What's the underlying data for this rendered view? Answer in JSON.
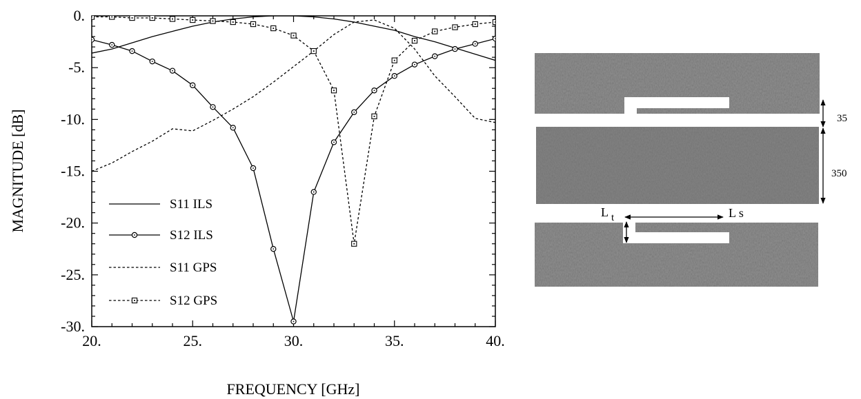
{
  "chart_data": {
    "type": "line",
    "xlabel": "FREQUENCY [GHz]",
    "ylabel": "MAGNITUDE [dB]",
    "xlim": [
      20,
      40
    ],
    "ylim": [
      -30,
      0
    ],
    "x_ticks": [
      20,
      25,
      30,
      35,
      40
    ],
    "x_tick_labels": [
      "20.",
      "25.",
      "30.",
      "35.",
      "40."
    ],
    "y_ticks": [
      0,
      -5,
      -10,
      -15,
      -20,
      -25,
      -30
    ],
    "y_tick_labels": [
      "0.",
      "-5.",
      "-10.",
      "-15.",
      "-20.",
      "-25.",
      "-30."
    ],
    "grid": false,
    "legend_position": "bottom-left",
    "series": [
      {
        "name": "S11 ILS",
        "style": "solid",
        "marker": "none",
        "x": [
          20,
          21,
          22,
          23,
          24,
          25,
          26,
          27,
          28,
          29,
          30,
          31,
          32,
          33,
          34,
          35,
          36,
          37,
          38,
          39,
          40
        ],
        "y": [
          -3.6,
          -3.2,
          -2.6,
          -2.0,
          -1.5,
          -1.0,
          -0.6,
          -0.3,
          -0.1,
          0.0,
          0.0,
          -0.1,
          -0.3,
          -0.6,
          -1.0,
          -1.4,
          -2.0,
          -2.5,
          -3.1,
          -3.7,
          -4.3
        ]
      },
      {
        "name": "S12 ILS",
        "style": "solid",
        "marker": "circle",
        "x": [
          20,
          21,
          22,
          23,
          24,
          25,
          26,
          27,
          28,
          29,
          30,
          31,
          32,
          33,
          34,
          35,
          36,
          37,
          38,
          39,
          40
        ],
        "y": [
          -2.3,
          -2.8,
          -3.4,
          -4.4,
          -5.3,
          -6.7,
          -8.8,
          -10.8,
          -14.7,
          -22.5,
          -29.5,
          -17.0,
          -12.2,
          -9.3,
          -7.2,
          -5.8,
          -4.7,
          -3.9,
          -3.2,
          -2.7,
          -2.2
        ]
      },
      {
        "name": "S11 GPS",
        "style": "dashed",
        "marker": "none",
        "x": [
          20,
          21,
          22,
          23,
          24,
          25,
          26,
          27,
          28,
          29,
          30,
          31,
          32,
          33,
          34,
          35,
          36,
          37,
          38,
          39,
          40
        ],
        "y": [
          -15.0,
          -14.2,
          -13.1,
          -12.1,
          -10.9,
          -11.1,
          -10.1,
          -9.0,
          -7.8,
          -6.4,
          -4.9,
          -3.4,
          -1.8,
          -0.6,
          -0.4,
          -1.2,
          -3.2,
          -5.8,
          -7.8,
          -9.9,
          -10.3
        ]
      },
      {
        "name": "S12 GPS",
        "style": "dashed",
        "marker": "square",
        "x": [
          20,
          21,
          22,
          23,
          24,
          25,
          26,
          27,
          28,
          29,
          30,
          31,
          32,
          33,
          34,
          35,
          36,
          37,
          38,
          39,
          40
        ],
        "y": [
          -0.1,
          -0.1,
          -0.2,
          -0.2,
          -0.3,
          -0.4,
          -0.5,
          -0.6,
          -0.8,
          -1.2,
          -1.9,
          -3.4,
          -7.2,
          -22.0,
          -9.7,
          -4.3,
          -2.4,
          -1.5,
          -1.1,
          -0.8,
          -0.6
        ]
      }
    ]
  },
  "diagram": {
    "dimension_gap": "35",
    "dimension_width": "350",
    "label_lt_main": "L",
    "label_lt_sub": "t",
    "label_ls": "L s"
  }
}
